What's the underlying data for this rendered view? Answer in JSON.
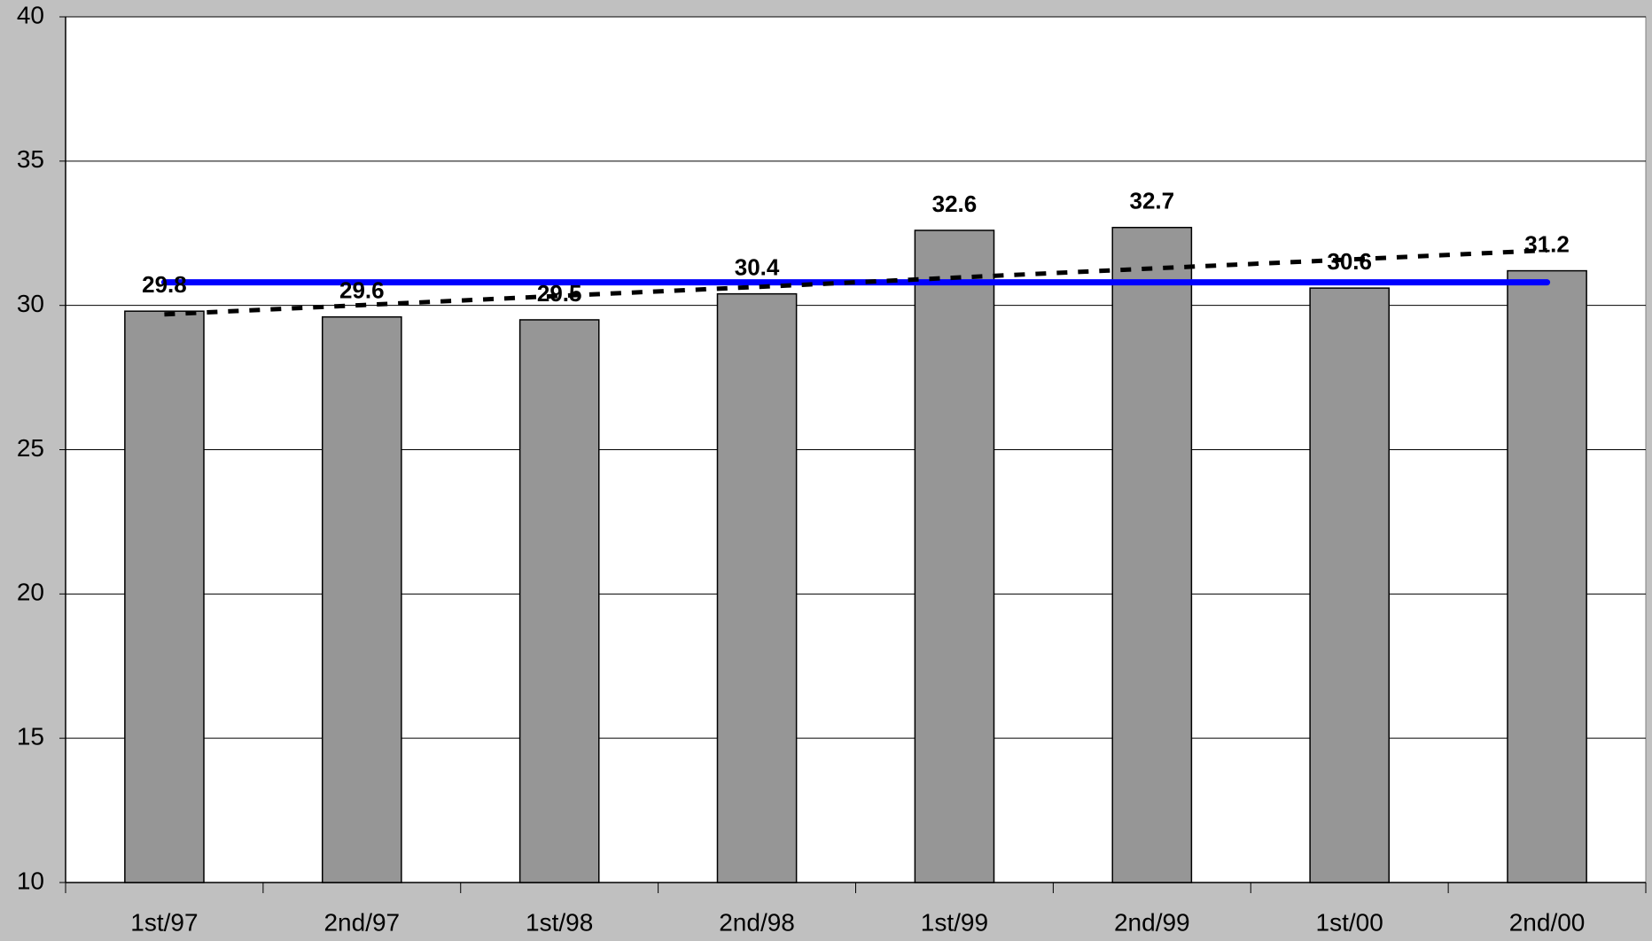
{
  "chart_data": {
    "type": "bar",
    "categories": [
      "1st/97",
      "2nd/97",
      "1st/98",
      "2nd/98",
      "1st/99",
      "2nd/99",
      "1st/00",
      "2nd/00"
    ],
    "series": [
      {
        "type": "bar",
        "color": "#969696",
        "values": [
          29.8,
          29.6,
          29.5,
          30.4,
          32.6,
          32.7,
          30.6,
          31.2
        ],
        "show_labels": true
      },
      {
        "type": "line",
        "color": "#0000ff",
        "values": [
          30.8,
          30.8,
          30.8,
          30.8,
          30.8,
          30.8,
          30.8,
          30.8
        ]
      },
      {
        "type": "line",
        "color": "#000000",
        "dashed": true,
        "values": [
          29.69,
          30.01,
          30.33,
          30.64,
          30.96,
          31.28,
          31.59,
          31.91
        ]
      }
    ],
    "ylim": [
      10,
      40
    ],
    "yticks": [
      10,
      15,
      20,
      25,
      30,
      35,
      40
    ],
    "grid": true,
    "background": "#c0c0c0",
    "plot_background": "#ffffff"
  }
}
